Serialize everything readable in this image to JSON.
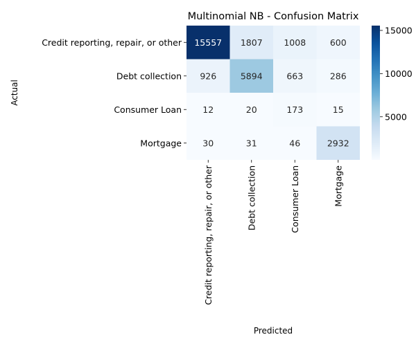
{
  "chart_data": {
    "type": "heatmap",
    "title": "Multinomial NB - Confusion Matrix",
    "xlabel": "Predicted",
    "ylabel": "Actual",
    "x_categories": [
      "Credit reporting, repair, or other",
      "Debt collection",
      "Consumer Loan",
      "Mortgage"
    ],
    "y_categories": [
      "Credit reporting, repair, or other",
      "Debt collection",
      "Consumer Loan",
      "Mortgage"
    ],
    "values": [
      [
        15557,
        1807,
        1008,
        600
      ],
      [
        926,
        5894,
        663,
        286
      ],
      [
        12,
        20,
        173,
        15
      ],
      [
        30,
        31,
        46,
        2932
      ]
    ],
    "colorbar": {
      "colormap": "Blues",
      "range": [
        12,
        15557
      ],
      "ticks": [
        5000,
        10000,
        15000
      ],
      "tick_labels": [
        "5000",
        "10000",
        "15000"
      ]
    }
  }
}
